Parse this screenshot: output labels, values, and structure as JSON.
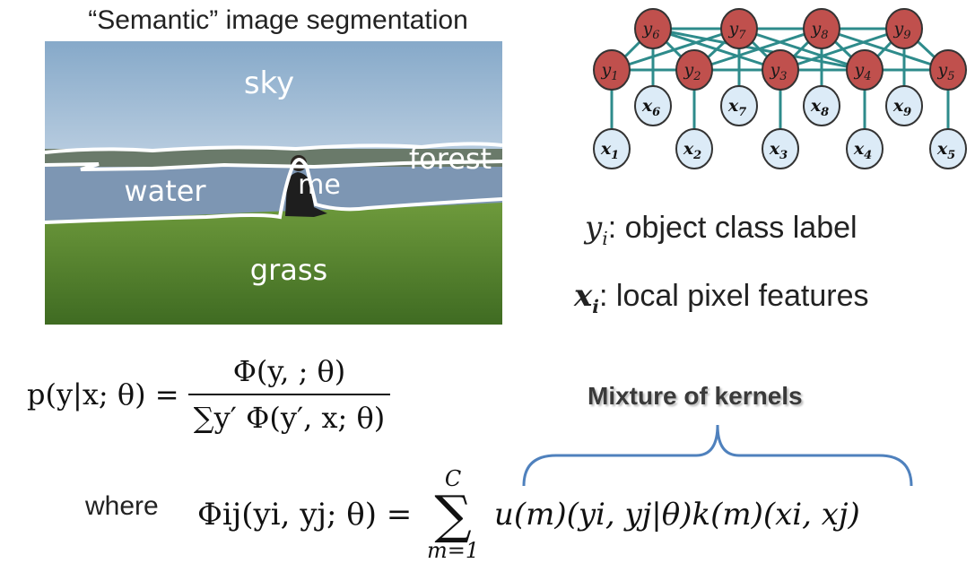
{
  "photo_title": "“Semantic” image segmentation",
  "photo_labels": {
    "sky": "sky",
    "forest": "forest",
    "water": "water",
    "me": "me",
    "grass": "grass"
  },
  "graph": {
    "y_top": [
      "y6",
      "y7",
      "y8",
      "y9"
    ],
    "y_bottom": [
      "y1",
      "y2",
      "y3",
      "y4",
      "y5"
    ],
    "x_mid": [
      "x6",
      "x7",
      "x8",
      "x9"
    ],
    "x_bottom": [
      "x1",
      "x2",
      "x3",
      "x4",
      "x5"
    ],
    "y_node_color": "#c0504d",
    "x_node_color": "#dcebf7",
    "edge_color": "#2e8b8b"
  },
  "legend": {
    "y_var": "y",
    "y_sub": "i",
    "y_text": ": object class label",
    "x_var": "x",
    "x_sub": "i",
    "x_text": ": local pixel features"
  },
  "equation1": {
    "lhs": "p(y|x; θ) =",
    "numerator": "Φ(y, ; θ)",
    "denominator": "∑y′ Φ(y′, x; θ)"
  },
  "where_label": "where",
  "equation2": {
    "lhs": "Φij(yi, yj; θ) =",
    "sum_top": "C",
    "sum_bottom": "m=1",
    "rhs": "u(m)(yi, yj|θ)k(m)(xi, xj)"
  },
  "mixture_label": "Mixture of kernels",
  "colors": {
    "brace": "#4f81bd"
  }
}
